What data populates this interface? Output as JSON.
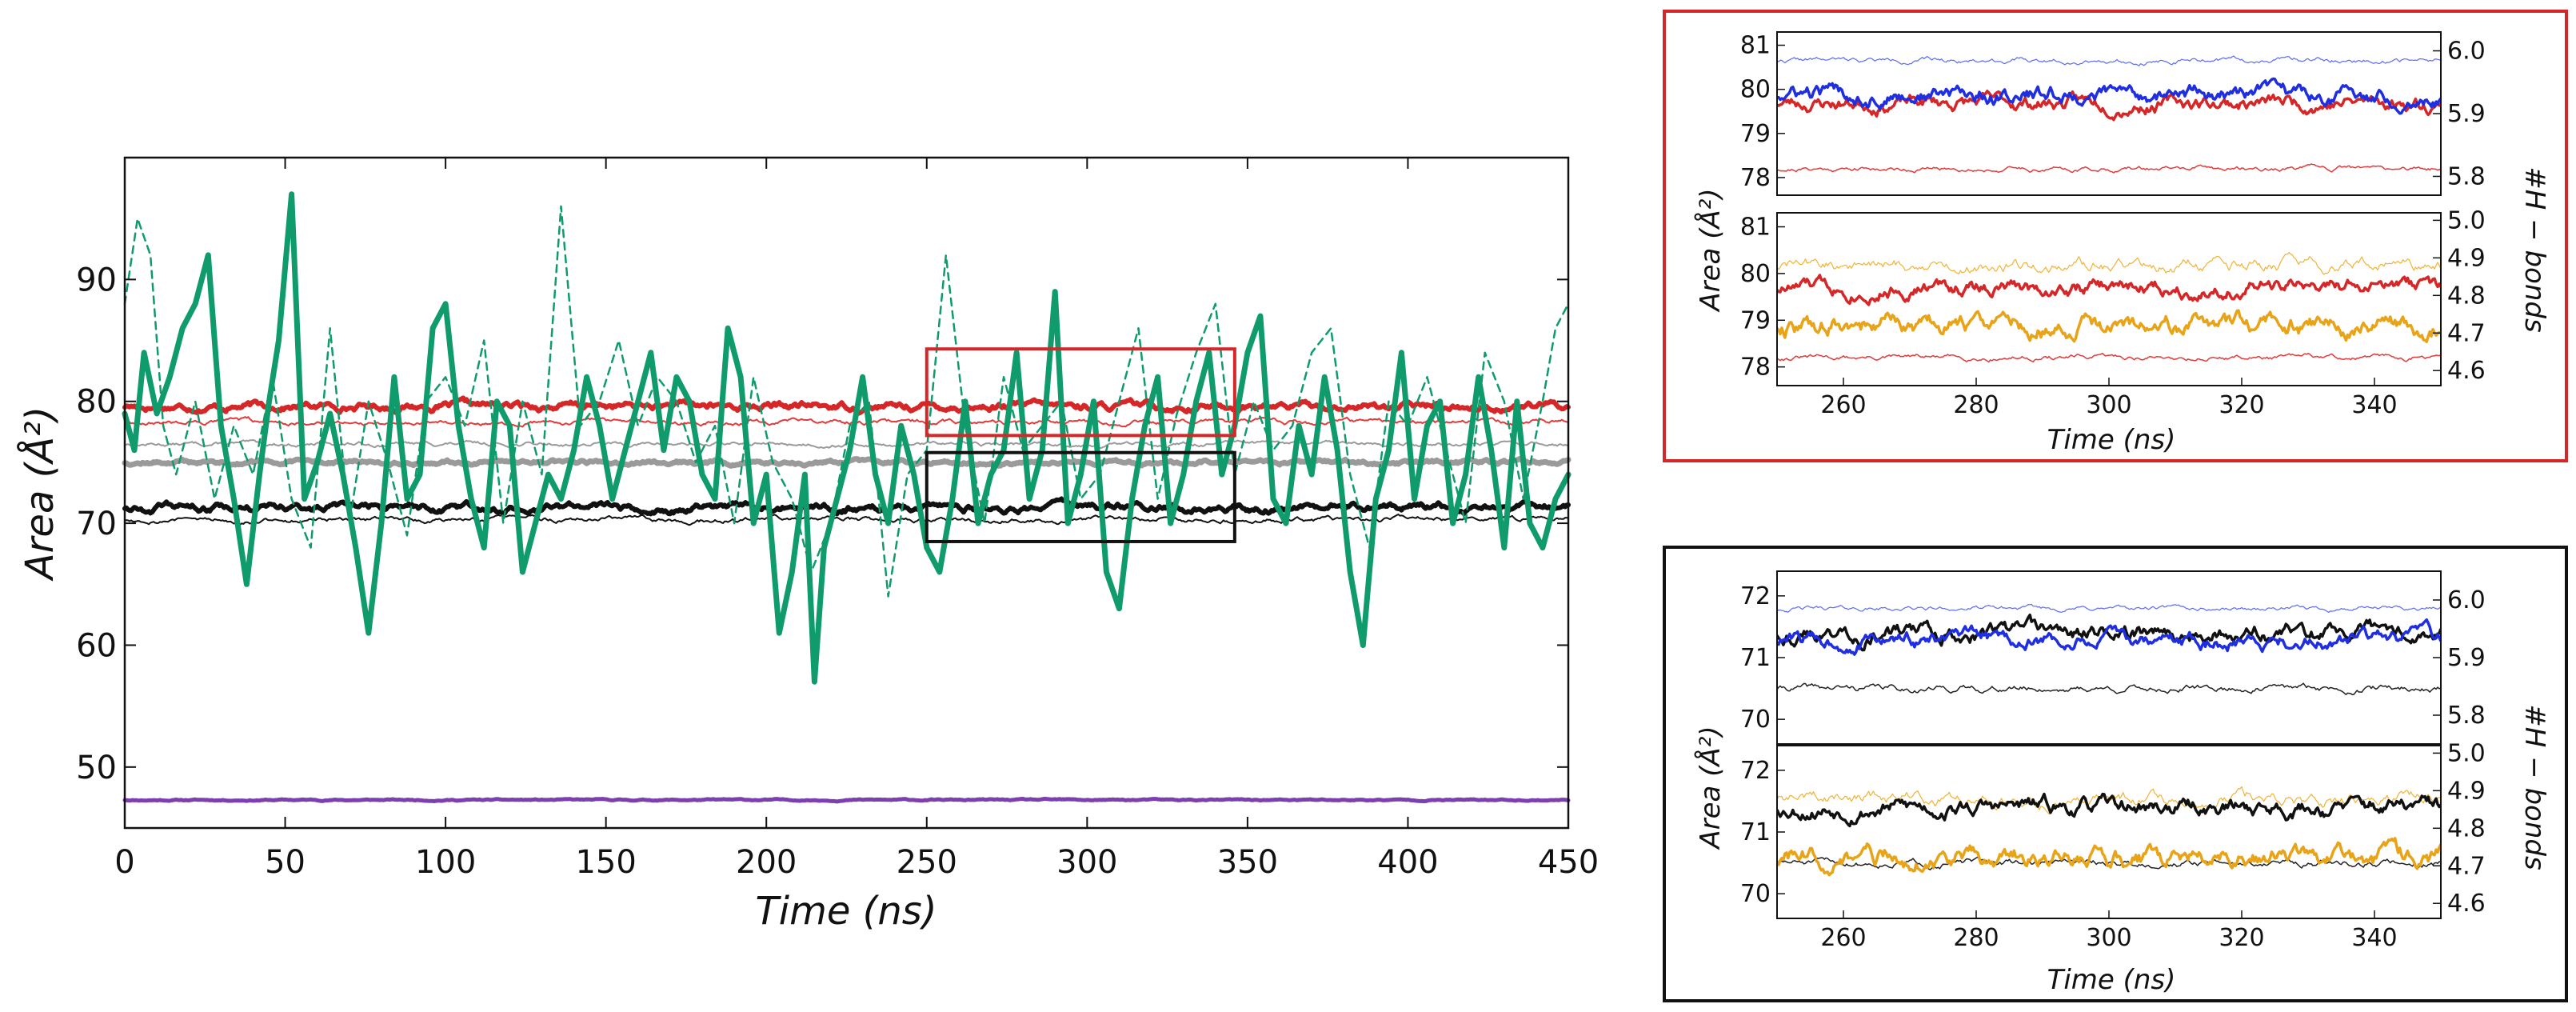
{
  "chart_data": [
    {
      "id": "main",
      "type": "line",
      "xlabel": "Time (ns)",
      "ylabel": "Area (Å²)",
      "xlim": [
        0,
        450
      ],
      "ylim": [
        45,
        100
      ],
      "x_ticks": [
        0,
        50,
        100,
        150,
        200,
        250,
        300,
        350,
        400,
        450
      ],
      "y_ticks": [
        50,
        60,
        70,
        80,
        90
      ],
      "series": [
        {
          "name": "purple-thick",
          "color": "#7b3fb0",
          "width": 5,
          "dash": "",
          "baseline": 47.3,
          "noise": 0.08,
          "seed": 11,
          "x_start": 0,
          "x_end": 450
        },
        {
          "name": "gray-thick",
          "color": "#9a9a9a",
          "width": 7,
          "dash": "",
          "baseline": 75.0,
          "noise": 0.25,
          "seed": 12,
          "x_start": 0,
          "x_end": 450
        },
        {
          "name": "gray-thin",
          "color": "#9a9a9a",
          "width": 2,
          "dash": "",
          "baseline": 76.5,
          "noise": 0.25,
          "seed": 13,
          "x_start": 0,
          "x_end": 450
        },
        {
          "name": "black-thin",
          "color": "#111111",
          "width": 2,
          "dash": "",
          "baseline": 70.3,
          "noise": 0.3,
          "seed": 14,
          "x_start": 0,
          "x_end": 450
        },
        {
          "name": "black-thick",
          "color": "#111111",
          "width": 6,
          "dash": "",
          "baseline": 71.3,
          "noise": 0.45,
          "seed": 15,
          "x_start": 0,
          "x_end": 450
        },
        {
          "name": "red-thin",
          "color": "#e23b3b",
          "width": 2,
          "dash": "",
          "baseline": 78.3,
          "noise": 0.3,
          "seed": 16,
          "x_start": 0,
          "x_end": 450
        },
        {
          "name": "red-thick",
          "color": "#d62728",
          "width": 6,
          "dash": "",
          "baseline": 79.6,
          "noise": 0.45,
          "seed": 17,
          "x_start": 0,
          "x_end": 450
        },
        {
          "name": "green-dashed",
          "color": "#0f9b6b",
          "width": 2.5,
          "dash": "9,7",
          "x": [
            0,
            4,
            8,
            12,
            16,
            22,
            28,
            34,
            40,
            46,
            52,
            58,
            64,
            70,
            76,
            82,
            88,
            94,
            100,
            106,
            112,
            118,
            124,
            130,
            136,
            142,
            148,
            154,
            160,
            166,
            172,
            178,
            184,
            190,
            196,
            202,
            208,
            214,
            220,
            226,
            232,
            238,
            244,
            250,
            256,
            262,
            268,
            274,
            280,
            286,
            292,
            298,
            304,
            310,
            316,
            322,
            328,
            334,
            340,
            346,
            352,
            358,
            364,
            370,
            376,
            382,
            388,
            394,
            400,
            406,
            412,
            418,
            424,
            430,
            436,
            442,
            446,
            450
          ],
          "values": [
            88,
            95,
            92,
            78,
            74,
            80,
            72,
            78,
            74,
            82,
            72,
            68,
            86,
            70,
            80,
            75,
            69,
            80,
            82,
            78,
            85,
            70,
            80,
            74,
            96,
            78,
            80,
            85,
            78,
            82,
            80,
            75,
            78,
            70,
            82,
            75,
            72,
            66,
            70,
            78,
            80,
            64,
            74,
            76,
            92,
            78,
            70,
            82,
            76,
            78,
            80,
            72,
            74,
            80,
            86,
            72,
            79,
            84,
            88,
            74,
            80,
            76,
            78,
            84,
            86,
            74,
            68,
            80,
            78,
            82,
            76,
            70,
            84,
            80,
            72,
            80,
            86,
            88
          ]
        },
        {
          "name": "green-thick",
          "color": "#0f9b6b",
          "width": 7,
          "dash": "",
          "x": [
            0,
            3,
            6,
            10,
            14,
            18,
            22,
            26,
            30,
            34,
            38,
            42,
            45,
            48,
            52,
            56,
            60,
            64,
            68,
            72,
            76,
            80,
            84,
            88,
            92,
            96,
            100,
            104,
            108,
            112,
            116,
            120,
            124,
            128,
            132,
            136,
            140,
            144,
            148,
            152,
            156,
            160,
            164,
            168,
            172,
            176,
            180,
            184,
            188,
            192,
            196,
            200,
            204,
            208,
            212,
            215,
            218,
            222,
            226,
            230,
            234,
            238,
            242,
            246,
            250,
            254,
            258,
            262,
            266,
            270,
            274,
            278,
            282,
            286,
            290,
            294,
            298,
            302,
            306,
            310,
            314,
            318,
            322,
            326,
            330,
            334,
            338,
            342,
            346,
            350,
            354,
            358,
            362,
            366,
            370,
            374,
            378,
            382,
            386,
            390,
            394,
            398,
            402,
            406,
            410,
            414,
            418,
            422,
            426,
            430,
            434,
            438,
            442,
            446,
            450
          ],
          "values": [
            79,
            76,
            84,
            79,
            82,
            86,
            88,
            92,
            78,
            72,
            65,
            74,
            80,
            85,
            97,
            72,
            75,
            79,
            74,
            68,
            61,
            70,
            82,
            72,
            74,
            86,
            88,
            78,
            72,
            68,
            80,
            78,
            66,
            70,
            74,
            72,
            76,
            82,
            78,
            72,
            76,
            80,
            84,
            76,
            82,
            80,
            74,
            72,
            86,
            82,
            70,
            74,
            61,
            66,
            74,
            57,
            68,
            72,
            76,
            82,
            74,
            70,
            78,
            74,
            68,
            66,
            72,
            80,
            70,
            74,
            76,
            84,
            72,
            76,
            89,
            70,
            74,
            80,
            66,
            63,
            72,
            78,
            82,
            70,
            74,
            80,
            84,
            74,
            78,
            84,
            87,
            72,
            70,
            78,
            74,
            82,
            76,
            66,
            60,
            72,
            76,
            84,
            72,
            78,
            80,
            70,
            74,
            82,
            76,
            68,
            80,
            70,
            68,
            72,
            74
          ]
        }
      ],
      "zoom_boxes": [
        {
          "name": "red-zoom-box",
          "color": "#d62728",
          "x": [
            250,
            346
          ],
          "y": [
            77.2,
            84.3
          ]
        },
        {
          "name": "black-zoom-box",
          "color": "#111111",
          "x": [
            250,
            346
          ],
          "y": [
            68.5,
            75.8
          ]
        }
      ]
    },
    {
      "id": "red-inset-top",
      "type": "line",
      "xlim": [
        250,
        350
      ],
      "ylim": [
        77.6,
        81.3
      ],
      "y2lim": [
        5.77,
        6.03
      ],
      "y_ticks": [
        78,
        79,
        80,
        81
      ],
      "y2_ticks": [
        5.8,
        5.9,
        6.0
      ],
      "series": [
        {
          "name": "red-thin",
          "axis": "y",
          "color": "#e23b3b",
          "width": 1.5,
          "baseline": 78.2,
          "noise": 0.08,
          "seed": 21
        },
        {
          "name": "blue-thin",
          "axis": "y2",
          "color": "#5b6bf5",
          "width": 1.2,
          "baseline": 5.985,
          "noise": 0.006,
          "seed": 22
        },
        {
          "name": "red-thick",
          "axis": "y",
          "color": "#d62728",
          "width": 3.5,
          "baseline": 79.7,
          "noise": 0.25,
          "seed": 23
        },
        {
          "name": "blue-thick",
          "axis": "y2",
          "color": "#1f2ee0",
          "width": 3.5,
          "baseline": 5.93,
          "noise": 0.02,
          "seed": 24
        }
      ]
    },
    {
      "id": "red-inset-bottom",
      "type": "line",
      "xlabel": "Time (ns)",
      "xlim": [
        250,
        350
      ],
      "ylim": [
        77.6,
        81.3
      ],
      "y2lim": [
        4.56,
        5.02
      ],
      "x_ticks": [
        260,
        280,
        300,
        320,
        340
      ],
      "y_ticks": [
        78,
        79,
        80,
        81
      ],
      "y2_ticks": [
        4.6,
        4.7,
        4.8,
        4.9,
        5.0
      ],
      "series": [
        {
          "name": "red-thin",
          "axis": "y",
          "color": "#e23b3b",
          "width": 1.5,
          "baseline": 78.2,
          "noise": 0.08,
          "seed": 31
        },
        {
          "name": "orange-thin",
          "axis": "y2",
          "color": "#f2b233",
          "width": 1.2,
          "baseline": 4.88,
          "noise": 0.025,
          "seed": 32
        },
        {
          "name": "red-thick",
          "axis": "y",
          "color": "#d62728",
          "width": 3.5,
          "baseline": 79.7,
          "noise": 0.25,
          "seed": 33
        },
        {
          "name": "orange-thick",
          "axis": "y2",
          "color": "#e8a317",
          "width": 3.5,
          "baseline": 4.72,
          "noise": 0.04,
          "seed": 34
        }
      ]
    },
    {
      "id": "black-inset-top",
      "type": "line",
      "xlim": [
        250,
        350
      ],
      "ylim": [
        69.6,
        72.4
      ],
      "y2lim": [
        5.75,
        6.05
      ],
      "y_ticks": [
        70,
        71,
        72
      ],
      "y2_ticks": [
        5.8,
        5.9,
        6.0
      ],
      "series": [
        {
          "name": "black-thin",
          "axis": "y",
          "color": "#222222",
          "width": 1.5,
          "baseline": 70.5,
          "noise": 0.08,
          "seed": 41
        },
        {
          "name": "blue-thin",
          "axis": "y2",
          "color": "#5b6bf5",
          "width": 1.2,
          "baseline": 5.985,
          "noise": 0.006,
          "seed": 42
        },
        {
          "name": "black-thick",
          "axis": "y",
          "color": "#111111",
          "width": 3.5,
          "baseline": 71.4,
          "noise": 0.2,
          "seed": 43
        },
        {
          "name": "blue-thick",
          "axis": "y2",
          "color": "#1f2ee0",
          "width": 3.5,
          "baseline": 5.93,
          "noise": 0.02,
          "seed": 44
        }
      ]
    },
    {
      "id": "black-inset-bottom",
      "type": "line",
      "xlabel": "Time (ns)",
      "xlim": [
        250,
        350
      ],
      "ylim": [
        69.6,
        72.4
      ],
      "y2lim": [
        4.56,
        5.02
      ],
      "x_ticks": [
        260,
        280,
        300,
        320,
        340
      ],
      "y_ticks": [
        70,
        71,
        72
      ],
      "y2_ticks": [
        4.6,
        4.7,
        4.8,
        4.9,
        5.0
      ],
      "series": [
        {
          "name": "black-thin",
          "axis": "y",
          "color": "#222222",
          "width": 1.5,
          "baseline": 70.5,
          "noise": 0.08,
          "seed": 51
        },
        {
          "name": "orange-thin",
          "axis": "y2",
          "color": "#f2b233",
          "width": 1.2,
          "baseline": 4.88,
          "noise": 0.025,
          "seed": 52
        },
        {
          "name": "black-thick",
          "axis": "y",
          "color": "#111111",
          "width": 3.5,
          "baseline": 71.4,
          "noise": 0.2,
          "seed": 53
        },
        {
          "name": "orange-thick",
          "axis": "y2",
          "color": "#e8a317",
          "width": 3.5,
          "baseline": 4.72,
          "noise": 0.04,
          "seed": 54
        }
      ]
    }
  ],
  "labels": {
    "main_ylabel": "Area (Å²)",
    "main_xlabel": "Time (ns)",
    "inset_ylabel": "Area (Å²)",
    "inset_y2label": "#H − bonds",
    "inset_xlabel": "Time (ns)"
  },
  "colors": {
    "red_frame": "#d62728",
    "black_frame": "#111111"
  }
}
